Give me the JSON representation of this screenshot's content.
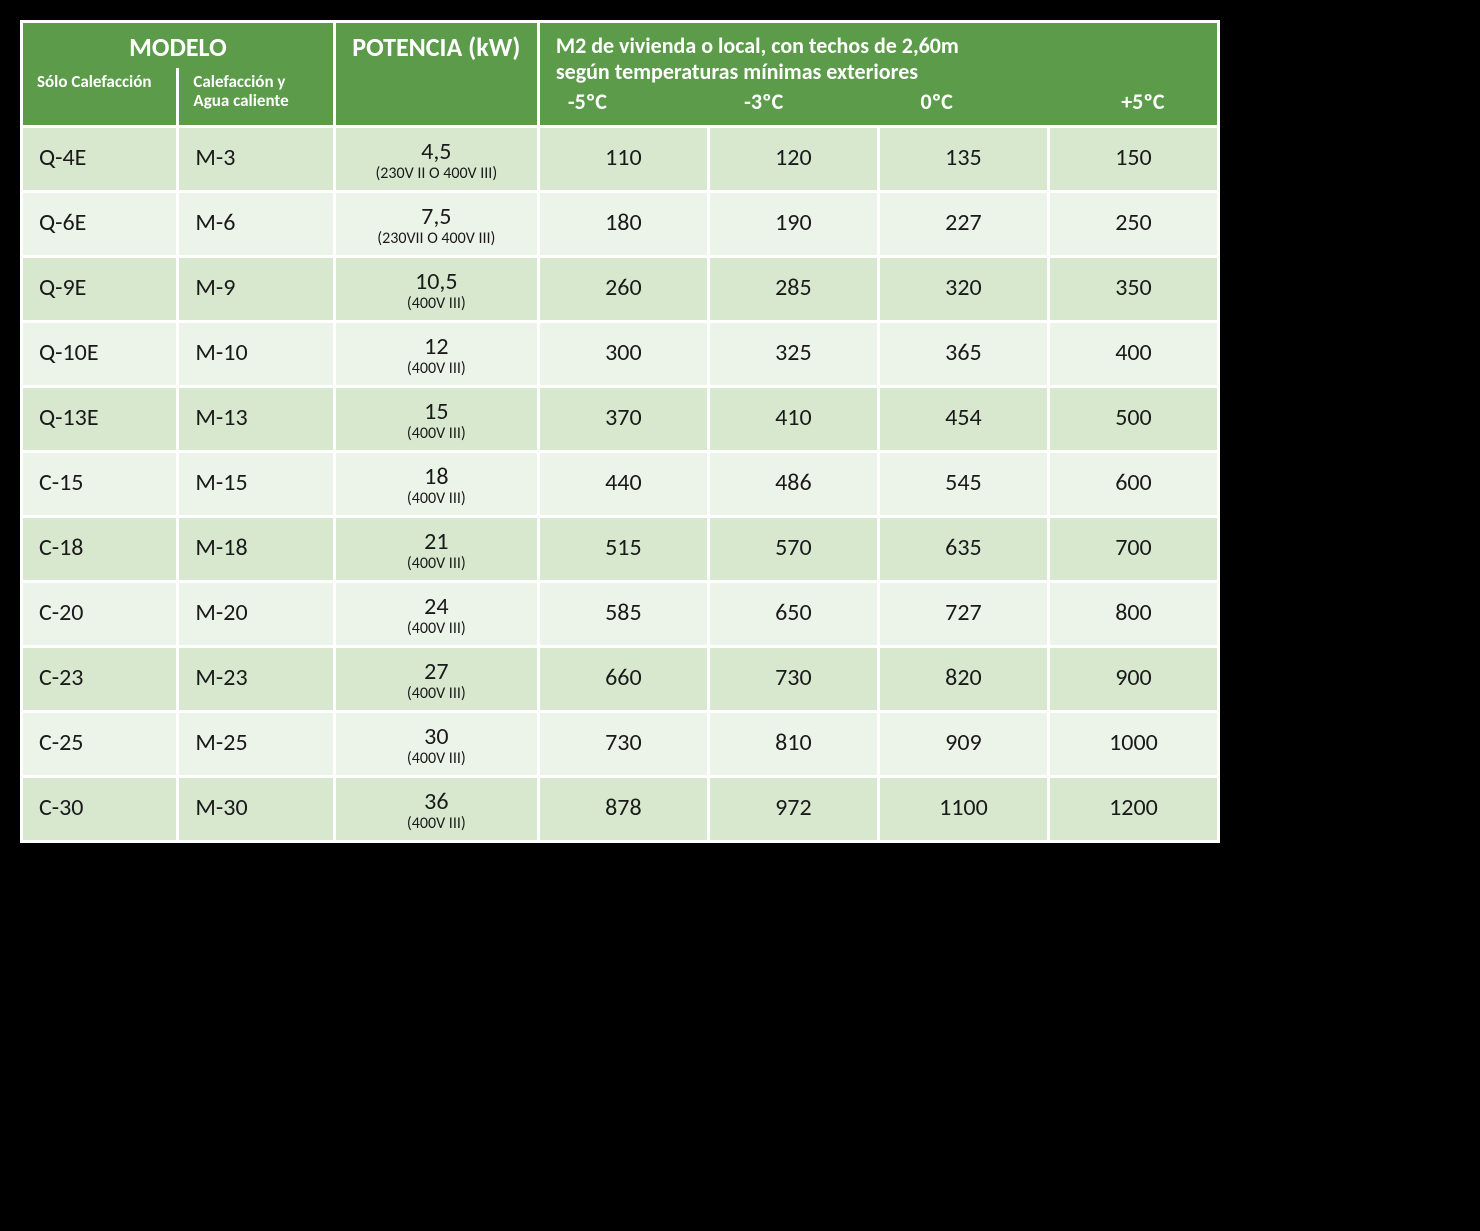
{
  "table": {
    "type": "table",
    "header_bg": "#5b9b4a",
    "header_text_color": "#ffffff",
    "row_colors": {
      "alt": "#d7e8cf",
      "reg": "#ecf3e8"
    },
    "border_color": "#ffffff",
    "body_font_size": 24,
    "header_big_font_size": 26,
    "header_small_font_size": 17,
    "header_m2_font_size": 22,
    "note_font_size": 16,
    "header": {
      "modelo_title": "MODELO",
      "modelo_sub1": "Sólo Calefacción",
      "modelo_sub2": "Calefacción y Agua caliente",
      "potencia_title": "POTENCIA (kW)",
      "m2_title_line1": "M2 de vivienda o local, con techos de 2,60m",
      "m2_title_line2": "según temperaturas mínimas exteriores",
      "temps": [
        "-5ºC",
        "-3ºC",
        "0ºC",
        "+5ºC"
      ]
    },
    "columns": [
      "solo_calefaccion",
      "calefaccion_agua",
      "potencia_kw",
      "potencia_note",
      "m2_-5",
      "m2_-3",
      "m2_0",
      "m2_+5"
    ],
    "rows": [
      {
        "solo": "Q-4E",
        "agua": "M-3",
        "kw": "4,5",
        "note": "(230V II O 400V III)",
        "t": [
          "110",
          "120",
          "135",
          "150"
        ]
      },
      {
        "solo": "Q-6E",
        "agua": "M-6",
        "kw": "7,5",
        "note": "(230VII O 400V III)",
        "t": [
          "180",
          "190",
          "227",
          "250"
        ]
      },
      {
        "solo": "Q-9E",
        "agua": "M-9",
        "kw": "10,5",
        "note": "(400V III)",
        "t": [
          "260",
          "285",
          "320",
          "350"
        ]
      },
      {
        "solo": "Q-10E",
        "agua": "M-10",
        "kw": "12",
        "note": "(400V III)",
        "t": [
          "300",
          "325",
          "365",
          "400"
        ]
      },
      {
        "solo": "Q-13E",
        "agua": "M-13",
        "kw": "15",
        "note": "(400V III)",
        "t": [
          "370",
          "410",
          "454",
          "500"
        ]
      },
      {
        "solo": "C-15",
        "agua": "M-15",
        "kw": "18",
        "note": "(400V III)",
        "t": [
          "440",
          "486",
          "545",
          "600"
        ]
      },
      {
        "solo": "C-18",
        "agua": "M-18",
        "kw": "21",
        "note": "(400V III)",
        "t": [
          "515",
          "570",
          "635",
          "700"
        ]
      },
      {
        "solo": "C-20",
        "agua": "M-20",
        "kw": "24",
        "note": "(400V III)",
        "t": [
          "585",
          "650",
          "727",
          "800"
        ]
      },
      {
        "solo": "C-23",
        "agua": "M-23",
        "kw": "27",
        "note": "(400V III)",
        "t": [
          "660",
          "730",
          "820",
          "900"
        ]
      },
      {
        "solo": "C-25",
        "agua": "M-25",
        "kw": "30",
        "note": "(400V III)",
        "t": [
          "730",
          "810",
          "909",
          "1000"
        ]
      },
      {
        "solo": "C-30",
        "agua": "M-30",
        "kw": "36",
        "note": "(400V III)",
        "t": [
          "878",
          "972",
          "1100",
          "1200"
        ]
      }
    ]
  }
}
